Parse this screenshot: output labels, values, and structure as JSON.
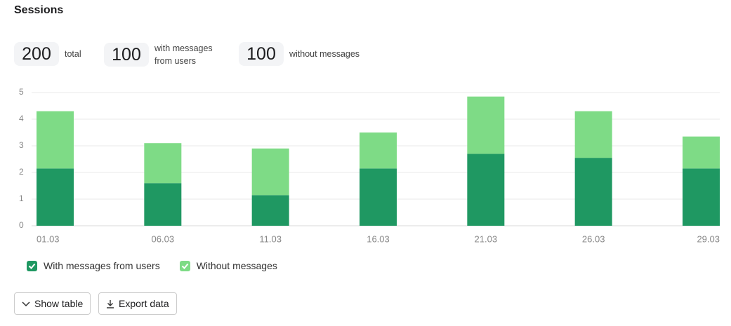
{
  "title": "Sessions",
  "stats": [
    {
      "value": 200,
      "label": "total"
    },
    {
      "value": 100,
      "label": "with messages from users"
    },
    {
      "value": 100,
      "label": "without messages"
    }
  ],
  "chart_data": {
    "type": "bar",
    "stacked": true,
    "categories": [
      "01.03",
      "06.03",
      "11.03",
      "16.03",
      "21.03",
      "26.03",
      "29.03"
    ],
    "series": [
      {
        "name": "With messages from users",
        "color": "#1f9862",
        "values": [
          2.15,
          1.6,
          1.15,
          2.15,
          2.7,
          2.55,
          2.15
        ]
      },
      {
        "name": "Without messages",
        "color": "#7edb86",
        "values": [
          2.15,
          1.5,
          1.75,
          1.35,
          2.15,
          1.75,
          1.2
        ]
      }
    ],
    "ylim": [
      0,
      5
    ],
    "yticks": [
      0,
      1,
      2,
      3,
      4,
      5
    ],
    "grid": true
  },
  "buttons": [
    "Show table",
    "Export data"
  ]
}
